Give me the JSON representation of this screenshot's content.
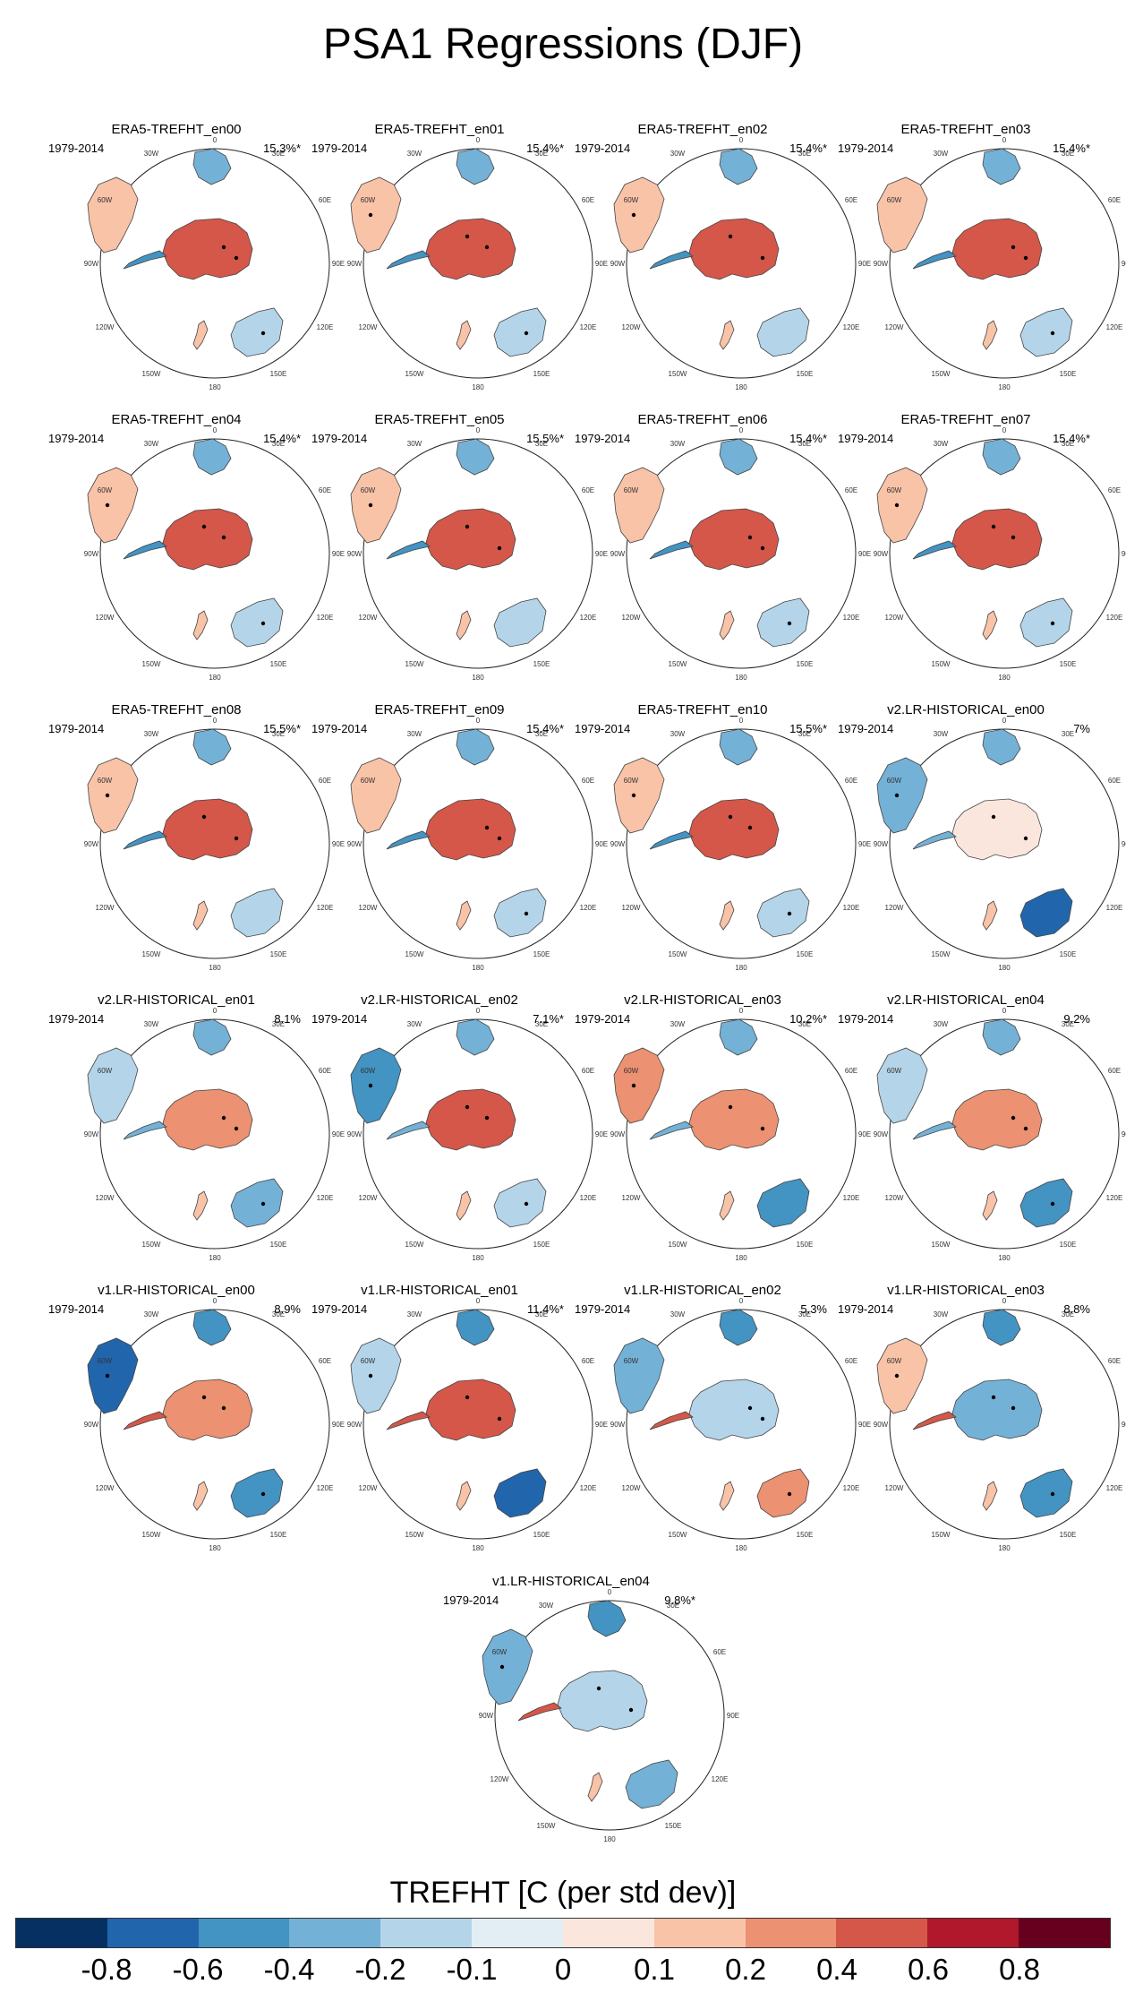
{
  "title": "PSA1 Regressions (DJF)",
  "chart_data": {
    "type": "heatmap",
    "title": "PSA1 Regressions (DJF)",
    "projection": "south polar stereographic",
    "variable_label": "TREFHT [C (per std dev)]",
    "longitude_labels": [
      "0",
      "30E",
      "60E",
      "90E",
      "120E",
      "150E",
      "180",
      "150W",
      "120W",
      "90W",
      "60W",
      "30W"
    ],
    "panels": [
      {
        "name": "ERA5-TREFHT_en00",
        "period": "1979-2014",
        "variance": "15.3%*"
      },
      {
        "name": "ERA5-TREFHT_en01",
        "period": "1979-2014",
        "variance": "15.4%*"
      },
      {
        "name": "ERA5-TREFHT_en02",
        "period": "1979-2014",
        "variance": "15.4%*"
      },
      {
        "name": "ERA5-TREFHT_en03",
        "period": "1979-2014",
        "variance": "15.4%*"
      },
      {
        "name": "ERA5-TREFHT_en04",
        "period": "1979-2014",
        "variance": "15.4%*"
      },
      {
        "name": "ERA5-TREFHT_en05",
        "period": "1979-2014",
        "variance": "15.5%*"
      },
      {
        "name": "ERA5-TREFHT_en06",
        "period": "1979-2014",
        "variance": "15.4%*"
      },
      {
        "name": "ERA5-TREFHT_en07",
        "period": "1979-2014",
        "variance": "15.4%*"
      },
      {
        "name": "ERA5-TREFHT_en08",
        "period": "1979-2014",
        "variance": "15.5%*"
      },
      {
        "name": "ERA5-TREFHT_en09",
        "period": "1979-2014",
        "variance": "15.4%*"
      },
      {
        "name": "ERA5-TREFHT_en10",
        "period": "1979-2014",
        "variance": "15.5%*"
      },
      {
        "name": "v2.LR-HISTORICAL_en00",
        "period": "1979-2014",
        "variance": "7%"
      },
      {
        "name": "v2.LR-HISTORICAL_en01",
        "period": "1979-2014",
        "variance": "8.1%"
      },
      {
        "name": "v2.LR-HISTORICAL_en02",
        "period": "1979-2014",
        "variance": "7.1%*"
      },
      {
        "name": "v2.LR-HISTORICAL_en03",
        "period": "1979-2014",
        "variance": "10.2%*"
      },
      {
        "name": "v2.LR-HISTORICAL_en04",
        "period": "1979-2014",
        "variance": "9.2%"
      },
      {
        "name": "v1.LR-HISTORICAL_en00",
        "period": "1979-2014",
        "variance": "8.9%"
      },
      {
        "name": "v1.LR-HISTORICAL_en01",
        "period": "1979-2014",
        "variance": "11.4%*"
      },
      {
        "name": "v1.LR-HISTORICAL_en02",
        "period": "1979-2014",
        "variance": "5.3%"
      },
      {
        "name": "v1.LR-HISTORICAL_en03",
        "period": "1979-2014",
        "variance": "8.8%"
      },
      {
        "name": "v1.LR-HISTORICAL_en04",
        "period": "1979-2014",
        "variance": "9.8%*"
      }
    ],
    "colorbar": {
      "label": "TREFHT [C (per std dev)]",
      "tick_labels": [
        "-0.8",
        "-0.6",
        "-0.4",
        "-0.2",
        "-0.1",
        "0",
        "0.1",
        "0.2",
        "0.4",
        "0.6",
        "0.8"
      ],
      "colors": [
        "#053061",
        "#2166ac",
        "#4393c3",
        "#74b1d6",
        "#b4d5e9",
        "#e2edf4",
        "#fbe6de",
        "#f9c3a8",
        "#ec9171",
        "#d4574a",
        "#b2182b",
        "#67001f"
      ]
    }
  }
}
